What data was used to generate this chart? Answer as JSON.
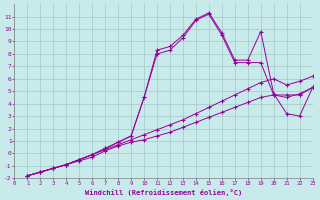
{
  "xlabel": "Windchill (Refroidissement éolien,°C)",
  "background_color": "#c8eaea",
  "grid_color": "#a0c8c8",
  "line_color": "#990099",
  "xlim": [
    0,
    23
  ],
  "ylim": [
    -2,
    12
  ],
  "xticks": [
    0,
    1,
    2,
    3,
    4,
    5,
    6,
    7,
    8,
    9,
    10,
    11,
    12,
    13,
    14,
    15,
    16,
    17,
    18,
    19,
    20,
    21,
    22,
    23
  ],
  "yticks": [
    -2,
    -1,
    0,
    1,
    2,
    3,
    4,
    5,
    6,
    7,
    8,
    9,
    10,
    11
  ],
  "lines": [
    {
      "x": [
        1,
        2,
        3,
        4,
        5,
        6,
        7,
        8,
        9,
        10,
        11,
        12,
        13,
        14,
        15,
        16,
        17,
        18,
        19,
        20,
        21,
        22,
        23
      ],
      "y": [
        -1.8,
        -1.5,
        -1.2,
        -0.9,
        -0.6,
        -0.3,
        0.2,
        0.6,
        0.9,
        1.1,
        1.4,
        1.7,
        2.1,
        2.5,
        2.9,
        3.3,
        3.7,
        4.1,
        4.5,
        4.7,
        4.5,
        4.8,
        5.3
      ]
    },
    {
      "x": [
        1,
        2,
        3,
        4,
        5,
        6,
        7,
        8,
        9,
        10,
        11,
        12,
        13,
        14,
        15,
        16,
        17,
        18,
        19,
        20,
        21,
        22,
        23
      ],
      "y": [
        -1.8,
        -1.5,
        -1.2,
        -0.9,
        -0.5,
        -0.1,
        0.3,
        0.7,
        1.1,
        1.5,
        1.9,
        2.3,
        2.7,
        3.2,
        3.7,
        4.2,
        4.7,
        5.2,
        5.7,
        6.0,
        5.5,
        5.8,
        6.2
      ]
    },
    {
      "x": [
        1,
        2,
        3,
        4,
        5,
        6,
        7,
        8,
        9,
        10,
        11,
        12,
        13,
        14,
        15,
        16,
        17,
        18,
        19,
        20,
        21,
        22,
        23
      ],
      "y": [
        -1.8,
        -1.5,
        -1.2,
        -0.9,
        -0.5,
        -0.1,
        0.4,
        0.9,
        1.4,
        4.5,
        8.0,
        8.3,
        9.3,
        10.7,
        11.2,
        9.5,
        7.3,
        7.3,
        7.3,
        4.7,
        4.7,
        4.7,
        5.3
      ]
    },
    {
      "x": [
        1,
        2,
        3,
        4,
        5,
        6,
        7,
        8,
        9,
        10,
        11,
        12,
        13,
        14,
        15,
        16,
        17,
        18,
        19,
        20,
        21,
        22,
        23
      ],
      "y": [
        -1.8,
        -1.5,
        -1.2,
        -0.9,
        -0.5,
        -0.1,
        0.4,
        0.9,
        1.4,
        4.5,
        8.3,
        8.6,
        9.5,
        10.8,
        11.3,
        9.7,
        7.5,
        7.5,
        9.8,
        4.8,
        3.2,
        3.0,
        5.3
      ]
    }
  ]
}
